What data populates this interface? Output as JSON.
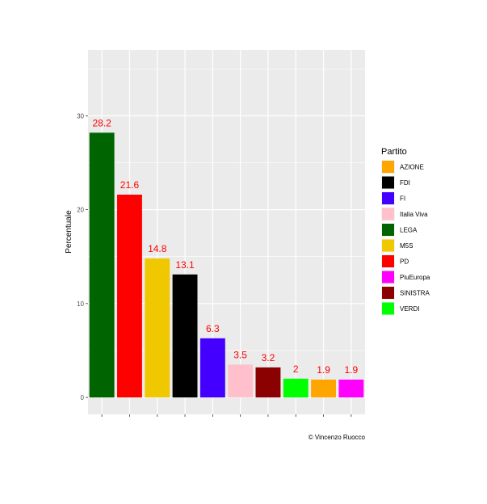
{
  "chart_data": {
    "type": "bar",
    "title": "",
    "xlabel": "",
    "ylabel": "Percentuale",
    "ylim": [
      -1.8,
      37
    ],
    "yticks": [
      0,
      10,
      20,
      30
    ],
    "grid": true,
    "legend_title": "Partito",
    "legend_position": "right",
    "caption": "© Vincenzo Ruocco",
    "categories": [
      "LEGA",
      "PD",
      "M5S",
      "FDI",
      "FI",
      "Italia Viva",
      "SINISTRA",
      "VERDI",
      "AZIONE",
      "PiuEuropa"
    ],
    "values": [
      28.2,
      21.6,
      14.8,
      13.1,
      6.3,
      3.5,
      3.2,
      2,
      1.9,
      1.9
    ],
    "value_labels": [
      "28.2",
      "21.6",
      "14.8",
      "13.1",
      "6.3",
      "3.5",
      "3.2",
      "2",
      "1.9",
      "1.9"
    ],
    "colors": {
      "AZIONE": "#ffa500",
      "FDI": "#000000",
      "FI": "#4400ff",
      "Italia Viva": "#ffc0cb",
      "LEGA": "#006400",
      "M5S": "#f0c800",
      "PD": "#ff0000",
      "PiuEuropa": "#ff00ff",
      "SINISTRA": "#8b0000",
      "VERDI": "#00ff00"
    },
    "legend": [
      "AZIONE",
      "FDI",
      "FI",
      "Italia Viva",
      "LEGA",
      "M5S",
      "PD",
      "PiuEuropa",
      "SINISTRA",
      "VERDI"
    ],
    "label_color": "#ff0000",
    "panel_color": "#ebebeb"
  }
}
